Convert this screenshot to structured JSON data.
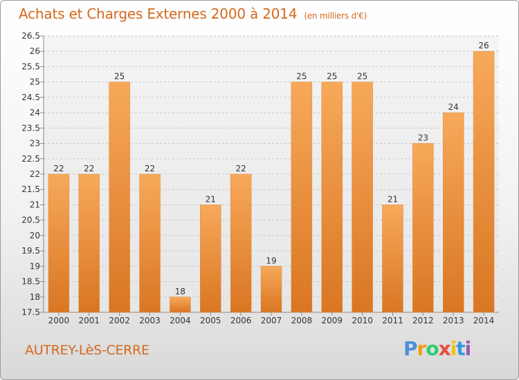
{
  "title": "Achats et Charges Externes 2000 à 2014",
  "unit_note": "(en milliers d'€)",
  "commune": "AUTREY-LèS-CERRE",
  "logo": {
    "letters": [
      "P",
      "r",
      "o",
      "x",
      "i",
      "t",
      "i"
    ],
    "colors": [
      "#4a90d9",
      "#f39c12",
      "#2ecc71",
      "#e74c3c",
      "#f1c40f",
      "#3498db",
      "#9b59b6"
    ]
  },
  "colors": {
    "bar_light": "#f7a95a",
    "bar_dark": "#d97623",
    "title": "#d2691e"
  },
  "chart_data": {
    "type": "bar",
    "categories": [
      "2000",
      "2001",
      "2002",
      "2003",
      "2004",
      "2005",
      "2006",
      "2007",
      "2008",
      "2009",
      "2010",
      "2011",
      "2012",
      "2013",
      "2014"
    ],
    "values": [
      22,
      22,
      25,
      22,
      18,
      21,
      22,
      19,
      25,
      25,
      25,
      21,
      23,
      24,
      26
    ],
    "ylim": [
      17.5,
      26.5
    ],
    "yticks": [
      "17.5",
      "18",
      "18.5",
      "19",
      "19.5",
      "20",
      "20.5",
      "21",
      "21.5",
      "22",
      "22.5",
      "23",
      "23.5",
      "24",
      "24.5",
      "25",
      "25.5",
      "26",
      "26.5"
    ],
    "grid": true
  }
}
